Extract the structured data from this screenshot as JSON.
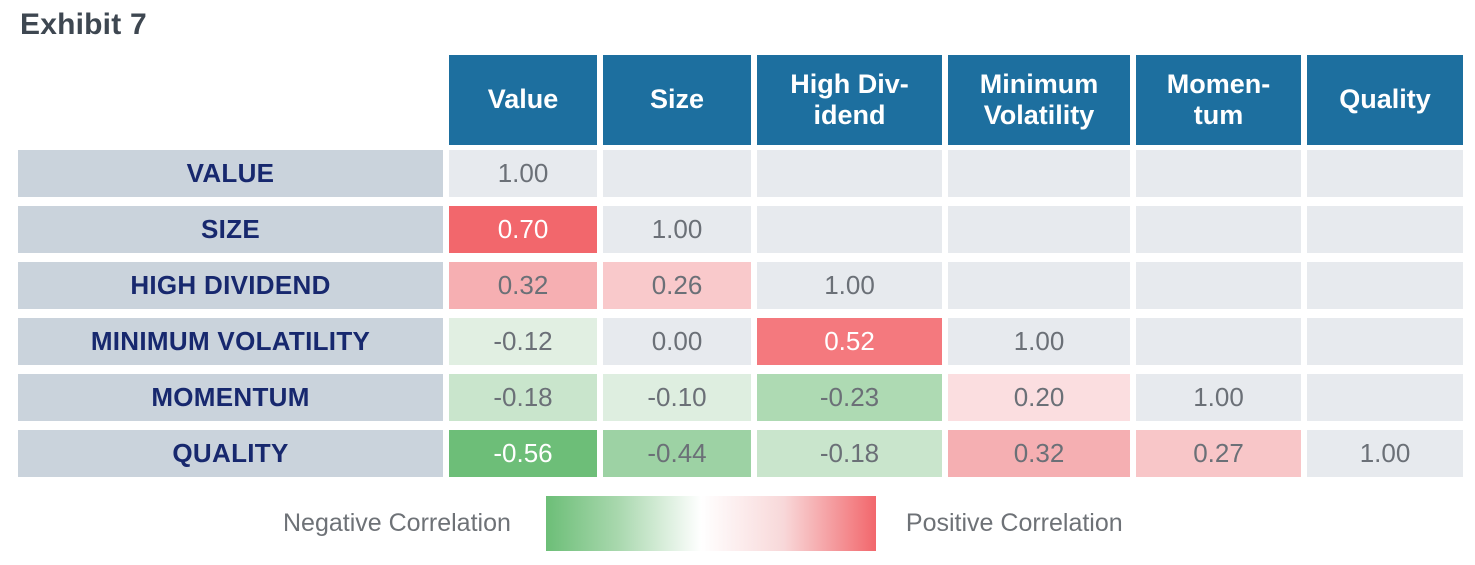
{
  "title": "Exhibit 7",
  "legend": {
    "negative_label": "Negative Correlation",
    "positive_label": "Positive Correlation"
  },
  "colors": {
    "header_bg": "#1D6F9F",
    "header_text": "#FFFFFF",
    "row_label_bg": "#CAD3DC",
    "row_label_text": "#17286E",
    "neutral_cell_bg": "#E7EAEE",
    "value_text": "#6B7077",
    "strong_positive": "#F2676C",
    "strong_negative": "#6DBE78",
    "title_text": "#3E4751"
  },
  "chart_data": {
    "type": "heatmap",
    "title": "Exhibit 7",
    "columns": [
      "Value",
      "Size",
      "High Div-\nidend",
      "Minimum\nVolatility",
      "Momen-\ntum",
      "Quality"
    ],
    "rows": [
      "VALUE",
      "SIZE",
      "HIGH DIVIDEND",
      "MINIMUM VOLATILITY",
      "MOMENTUM",
      "QUALITY"
    ],
    "matrix": [
      [
        1.0,
        null,
        null,
        null,
        null,
        null
      ],
      [
        0.7,
        1.0,
        null,
        null,
        null,
        null
      ],
      [
        0.32,
        0.26,
        1.0,
        null,
        null,
        null
      ],
      [
        -0.12,
        0.0,
        0.52,
        1.0,
        null,
        null
      ],
      [
        -0.18,
        -0.1,
        -0.23,
        0.2,
        1.0,
        null
      ],
      [
        -0.56,
        -0.44,
        -0.18,
        0.32,
        0.27,
        1.0
      ]
    ],
    "legend": "green = negative correlation, red = positive correlation",
    "cells": [
      [
        {
          "text": "1.00",
          "bg": "#E7EAEE",
          "fg": "#6B7077"
        },
        {
          "text": "",
          "bg": "#E7EAEE",
          "fg": "#6B7077"
        },
        {
          "text": "",
          "bg": "#E7EAEE",
          "fg": "#6B7077"
        },
        {
          "text": "",
          "bg": "#E7EAEE",
          "fg": "#6B7077"
        },
        {
          "text": "",
          "bg": "#E7EAEE",
          "fg": "#6B7077"
        },
        {
          "text": "",
          "bg": "#E7EAEE",
          "fg": "#6B7077"
        }
      ],
      [
        {
          "text": "0.70",
          "bg": "#F2676C",
          "fg": "#FFFFFF"
        },
        {
          "text": "1.00",
          "bg": "#E7EAEE",
          "fg": "#6B7077"
        },
        {
          "text": "",
          "bg": "#E7EAEE",
          "fg": "#6B7077"
        },
        {
          "text": "",
          "bg": "#E7EAEE",
          "fg": "#6B7077"
        },
        {
          "text": "",
          "bg": "#E7EAEE",
          "fg": "#6B7077"
        },
        {
          "text": "",
          "bg": "#E7EAEE",
          "fg": "#6B7077"
        }
      ],
      [
        {
          "text": "0.32",
          "bg": "#F6AFB2",
          "fg": "#6B7077"
        },
        {
          "text": "0.26",
          "bg": "#F9C9CB",
          "fg": "#6B7077"
        },
        {
          "text": "1.00",
          "bg": "#E7EAEE",
          "fg": "#6B7077"
        },
        {
          "text": "",
          "bg": "#E7EAEE",
          "fg": "#6B7077"
        },
        {
          "text": "",
          "bg": "#E7EAEE",
          "fg": "#6B7077"
        },
        {
          "text": "",
          "bg": "#E7EAEE",
          "fg": "#6B7077"
        }
      ],
      [
        {
          "text": "-0.12",
          "bg": "#E1EFE2",
          "fg": "#6B7077"
        },
        {
          "text": "0.00",
          "bg": "#E7EAEE",
          "fg": "#6B7077"
        },
        {
          "text": "0.52",
          "bg": "#F4797E",
          "fg": "#FFFFFF"
        },
        {
          "text": "1.00",
          "bg": "#E7EAEE",
          "fg": "#6B7077"
        },
        {
          "text": "",
          "bg": "#E7EAEE",
          "fg": "#6B7077"
        },
        {
          "text": "",
          "bg": "#E7EAEE",
          "fg": "#6B7077"
        }
      ],
      [
        {
          "text": "-0.18",
          "bg": "#C9E5CC",
          "fg": "#6B7077"
        },
        {
          "text": "-0.10",
          "bg": "#DEEEE0",
          "fg": "#6B7077"
        },
        {
          "text": "-0.23",
          "bg": "#AEDAB3",
          "fg": "#6B7077"
        },
        {
          "text": "0.20",
          "bg": "#FBDEE0",
          "fg": "#6B7077"
        },
        {
          "text": "1.00",
          "bg": "#E7EAEE",
          "fg": "#6B7077"
        },
        {
          "text": "",
          "bg": "#E7EAEE",
          "fg": "#6B7077"
        }
      ],
      [
        {
          "text": "-0.56",
          "bg": "#6DBE78",
          "fg": "#FFFFFF"
        },
        {
          "text": "-0.44",
          "bg": "#9DD2A4",
          "fg": "#6B7077"
        },
        {
          "text": "-0.18",
          "bg": "#C9E5CC",
          "fg": "#6B7077"
        },
        {
          "text": "0.32",
          "bg": "#F5AFB2",
          "fg": "#6B7077"
        },
        {
          "text": "0.27",
          "bg": "#F8C6C8",
          "fg": "#6B7077"
        },
        {
          "text": "1.00",
          "bg": "#E7EAEE",
          "fg": "#6B7077"
        }
      ]
    ]
  }
}
